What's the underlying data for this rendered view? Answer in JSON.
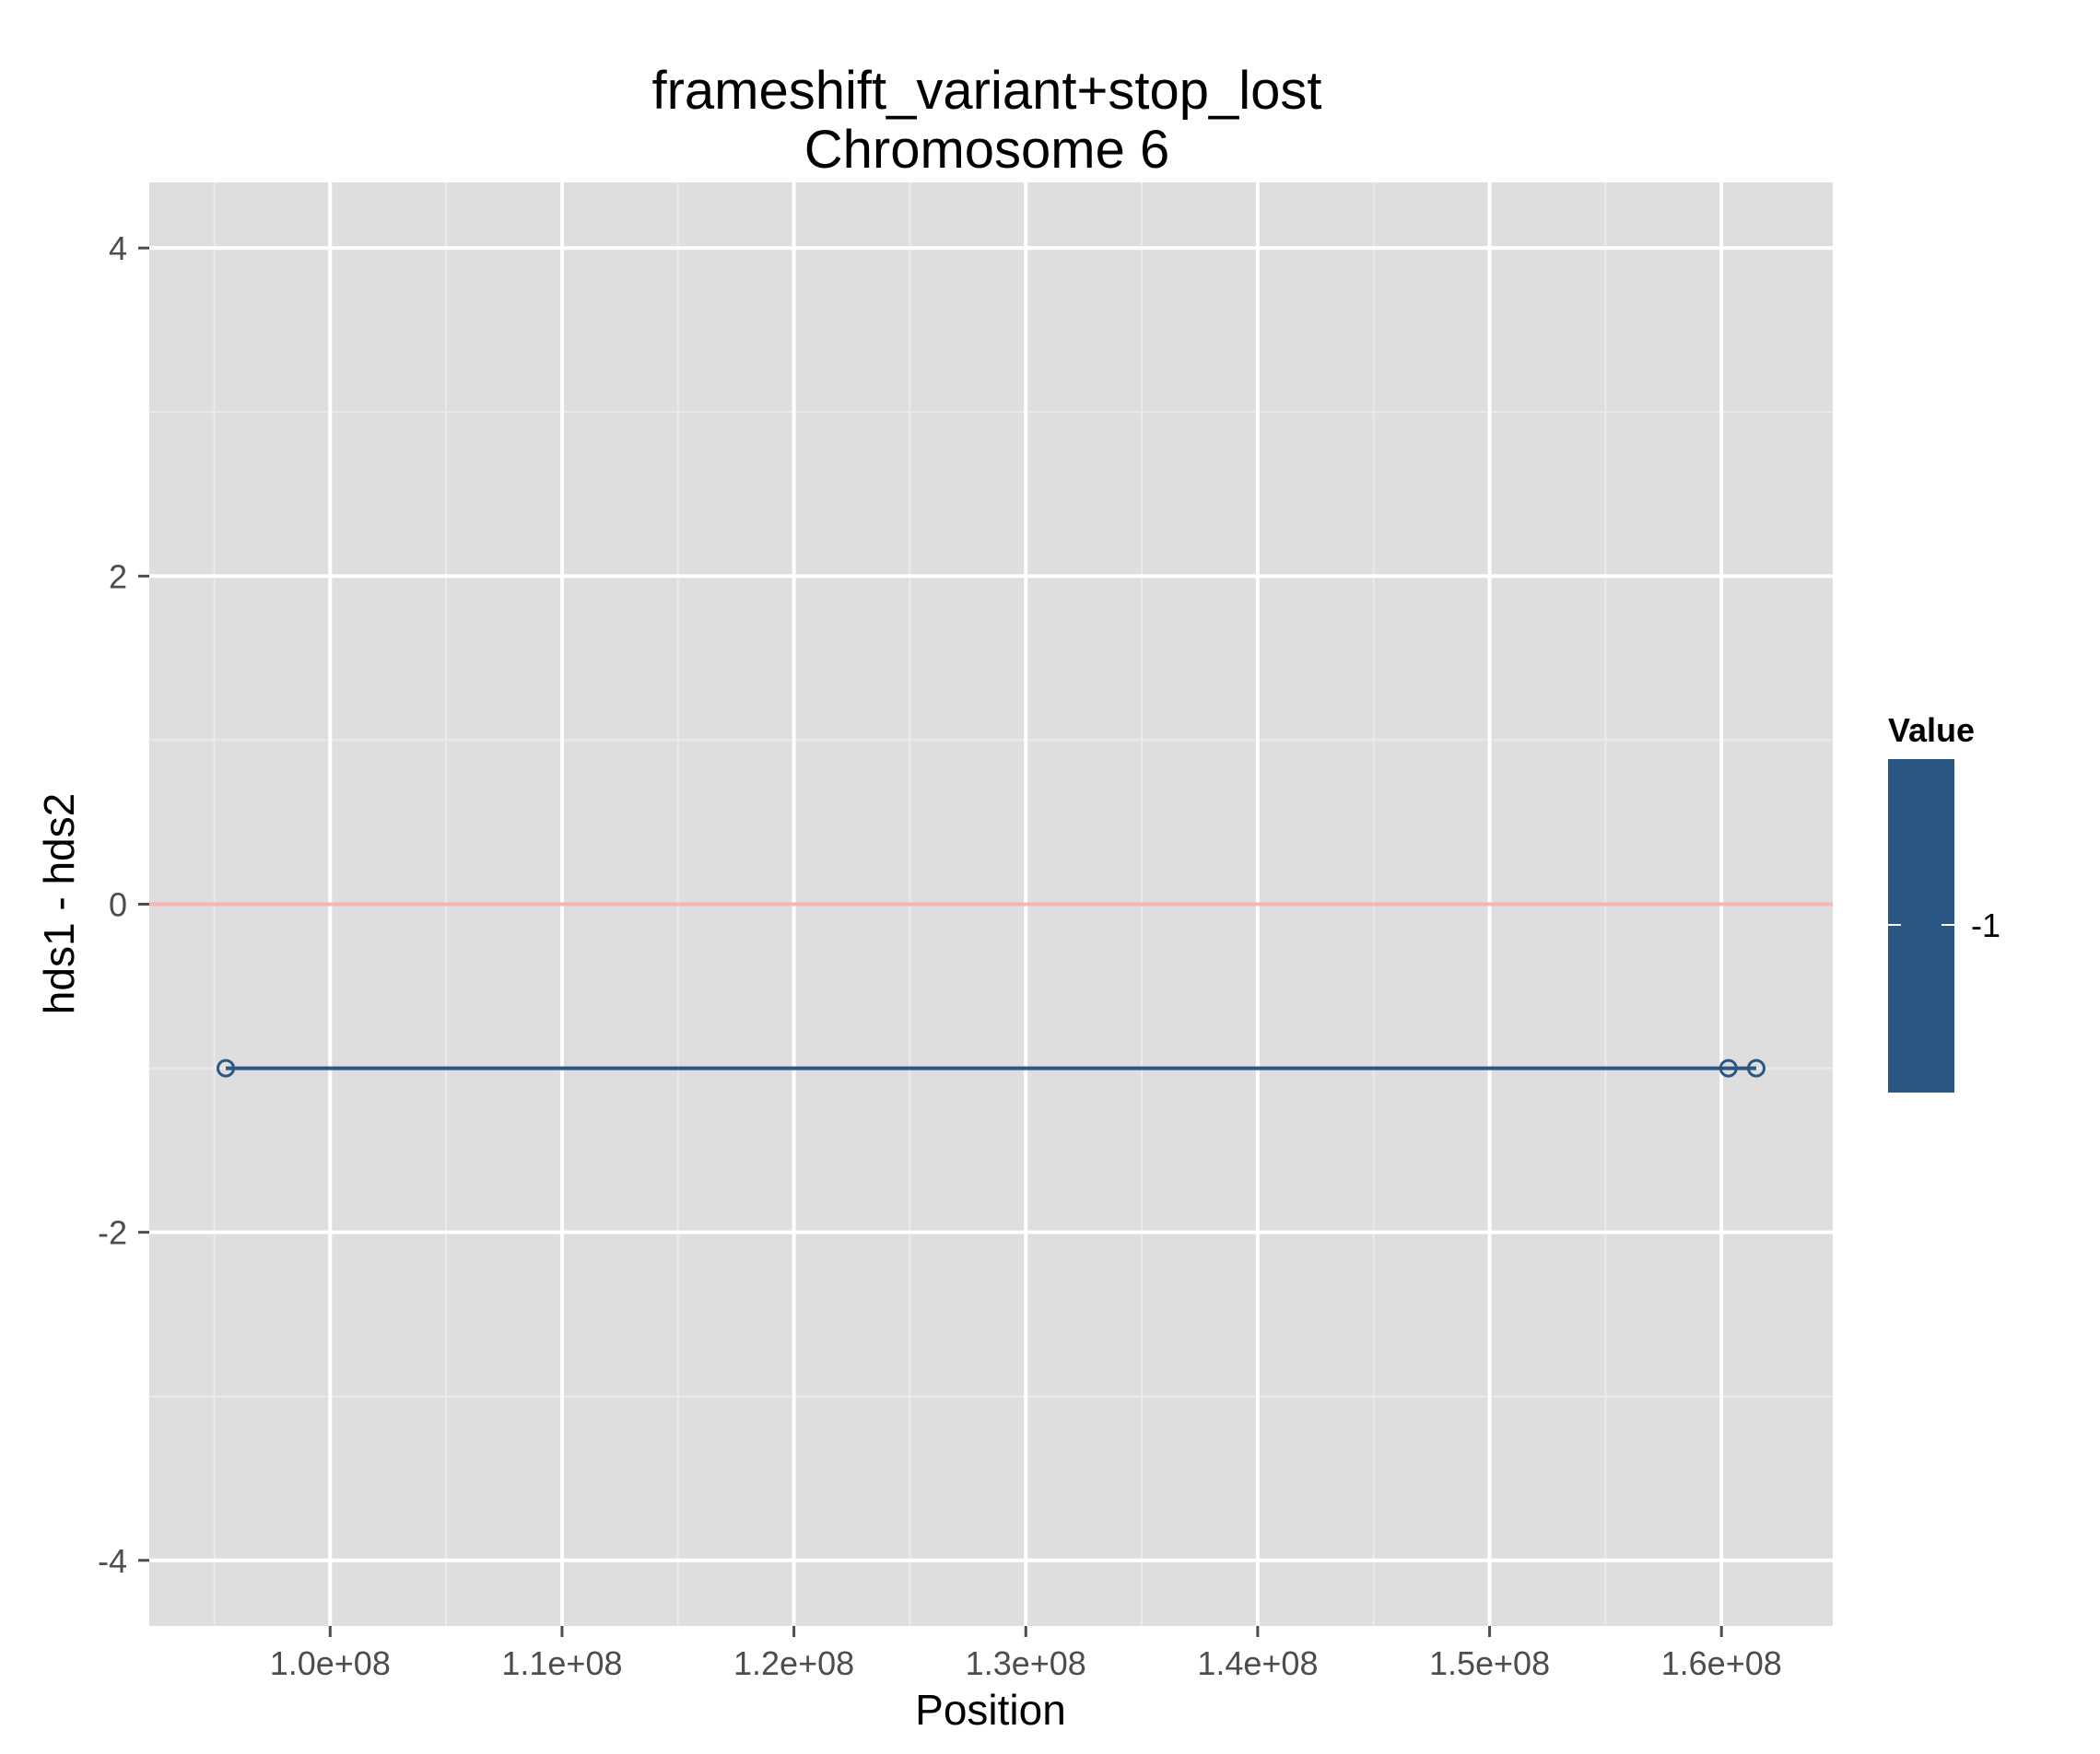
{
  "chart_data": {
    "type": "line",
    "title": "frameshift_variant+stop_lost",
    "subtitle": "Chromosome 6",
    "xlabel": "Position",
    "ylabel": "hds1 - hds2",
    "xlim": [
      92200000,
      164800000
    ],
    "ylim": [
      -4.4,
      4.4
    ],
    "x_ticks": [
      100000000,
      110000000,
      120000000,
      130000000,
      140000000,
      150000000,
      160000000
    ],
    "x_tick_labels": [
      "1.0e+08",
      "1.1e+08",
      "1.2e+08",
      "1.3e+08",
      "1.4e+08",
      "1.5e+08",
      "1.6e+08"
    ],
    "y_ticks": [
      -4,
      -2,
      0,
      2,
      4
    ],
    "y_tick_labels": [
      "-4",
      "-2",
      "0",
      "2",
      "4"
    ],
    "grid": true,
    "reference_line": {
      "y": 0,
      "color": "#f8b3b3"
    },
    "series": [
      {
        "x": [
          95500000,
          160300000,
          161500000
        ],
        "y": [
          -1,
          -1,
          -1
        ],
        "color": "#2a5783",
        "marker": "open-circle"
      }
    ],
    "legend": {
      "title": "Value",
      "labels": [
        "-1"
      ],
      "color": "#2a5783",
      "placement": "right"
    },
    "colors": {
      "panel_background": "#dedede",
      "grid_major": "#ffffff",
      "grid_minor": "#eaeaea"
    }
  }
}
